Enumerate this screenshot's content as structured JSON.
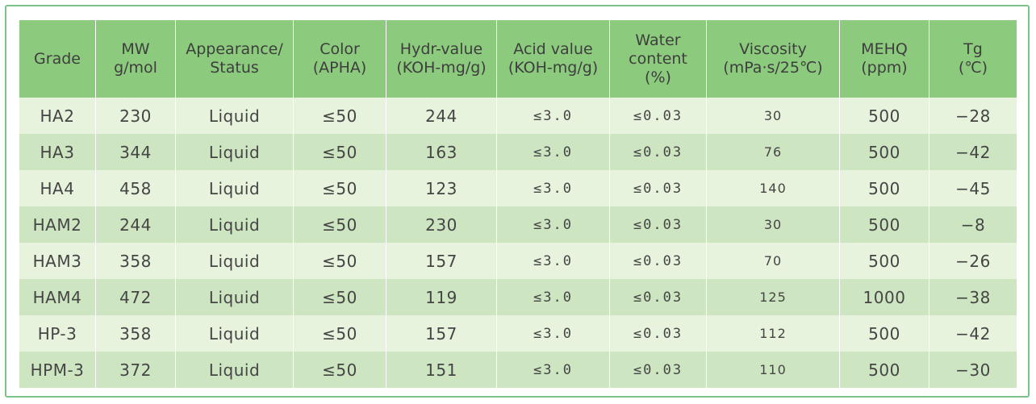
{
  "table": {
    "headers": [
      "Grade",
      "MW\ng/mol",
      "Appearance/\nStatus",
      "Color\n(APHA)",
      "Hydr-value\n(KOH-mg/g)",
      "Acid value\n(KOH-mg/g)",
      "Water\ncontent\n(%)",
      "Viscosity\n(mPa·s/25℃)",
      "MEHQ\n(ppm)",
      "Tg\n(℃)"
    ],
    "rows": [
      [
        "HA2",
        "230",
        "Liquid",
        "≤50",
        "244",
        "≤3.0",
        "≤0.03",
        "30",
        "500",
        "−28"
      ],
      [
        "HA3",
        "344",
        "Liquid",
        "≤50",
        "163",
        "≤3.0",
        "≤0.03",
        "76",
        "500",
        "−42"
      ],
      [
        "HA4",
        "458",
        "Liquid",
        "≤50",
        "123",
        "≤3.0",
        "≤0.03",
        "140",
        "500",
        "−45"
      ],
      [
        "HAM2",
        "244",
        "Liquid",
        "≤50",
        "230",
        "≤3.0",
        "≤0.03",
        "30",
        "500",
        "−8"
      ],
      [
        "HAM3",
        "358",
        "Liquid",
        "≤50",
        "157",
        "≤3.0",
        "≤0.03",
        "70",
        "500",
        "−26"
      ],
      [
        "HAM4",
        "472",
        "Liquid",
        "≤50",
        "119",
        "≤3.0",
        "≤0.03",
        "125",
        "1000",
        "−38"
      ],
      [
        "HP-3",
        "358",
        "Liquid",
        "≤50",
        "157",
        "≤3.0",
        "≤0.03",
        "112",
        "500",
        "−42"
      ],
      [
        "HPM-3",
        "372",
        "Liquid",
        "≤50",
        "151",
        "≤3.0",
        "≤0.03",
        "110",
        "500",
        "−30"
      ]
    ]
  },
  "colors": {
    "header_bg": "#8ccb7d",
    "row_light": "#e7f3dd",
    "row_dark": "#cde6c1",
    "frame_border": "#7cc08a"
  }
}
